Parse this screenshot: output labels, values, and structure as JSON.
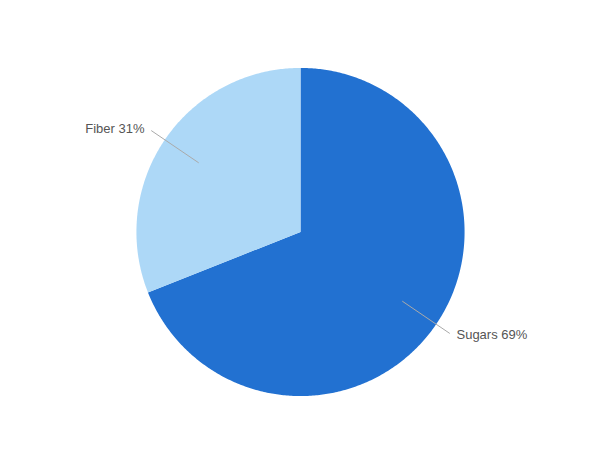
{
  "chart_data": {
    "type": "pie",
    "categories": [
      "Sugars",
      "Fiber"
    ],
    "values": [
      69,
      31
    ],
    "colors": [
      "#2271D1",
      "#ADD8F7"
    ],
    "value_labels": [
      "Sugars 69%",
      "Fiber 31%"
    ],
    "data_labels": true
  }
}
